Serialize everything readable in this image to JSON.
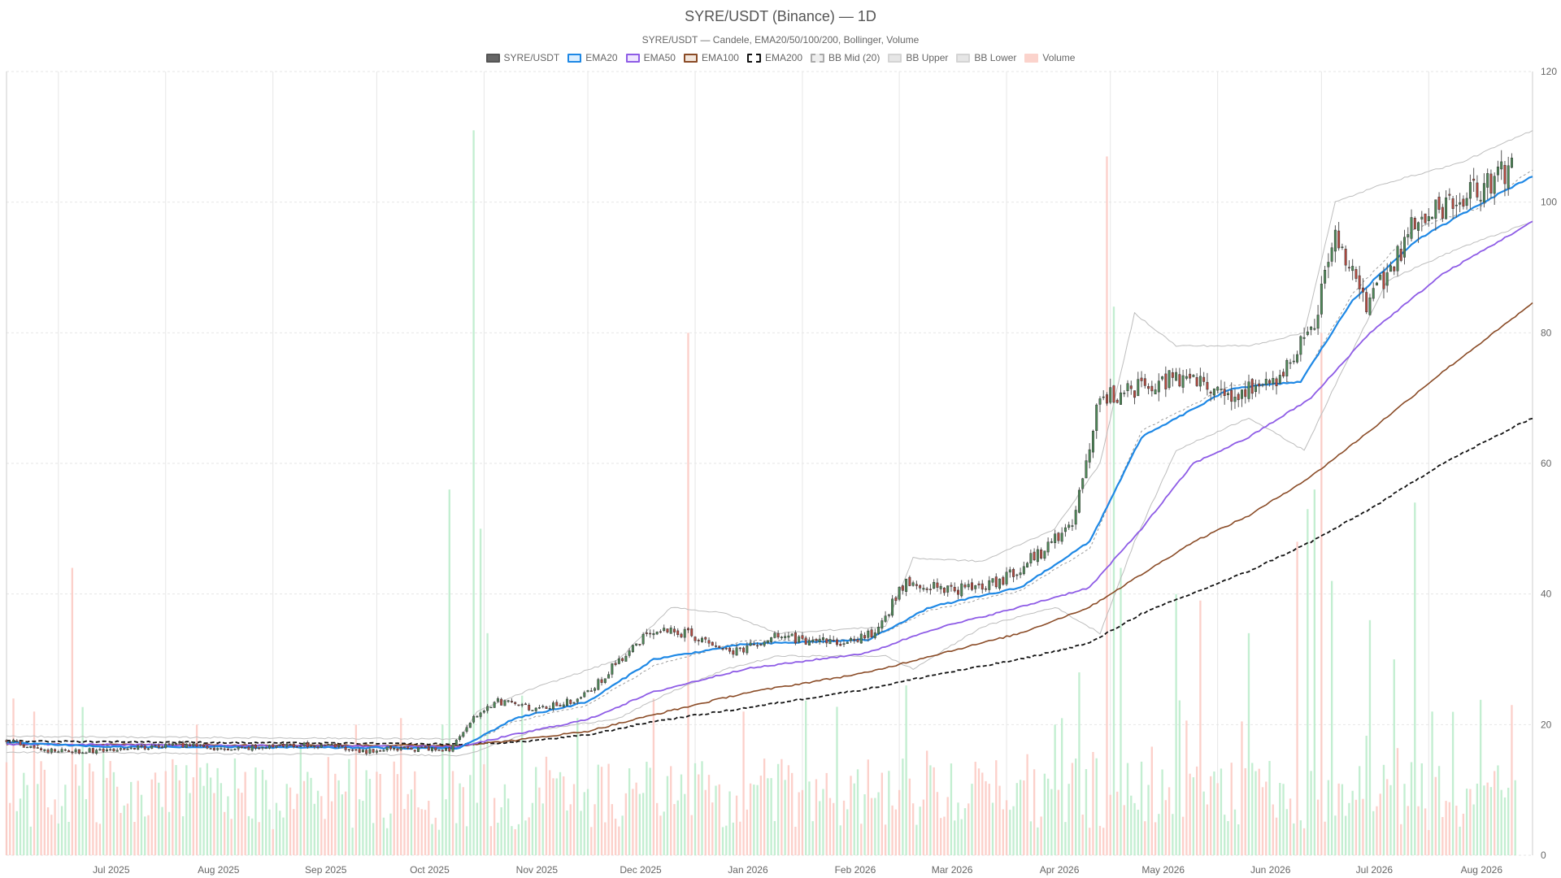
{
  "chart_data": {
    "type": "candlestick",
    "title": "SYRE/USDT (Binance) — 1D",
    "subtitle": "SYRE/USDT — Candele, EMA20/50/100/200, Bollinger, Volume",
    "legend": [
      {
        "name": "SYRE/USDT",
        "fill": "#666666",
        "border": "#555555",
        "style": "solid"
      },
      {
        "name": "EMA20",
        "fill": "#dbeeff",
        "border": "#1e88e5",
        "style": "solid"
      },
      {
        "name": "EMA50",
        "fill": "#efe6ff",
        "border": "#8e5ce6",
        "style": "solid"
      },
      {
        "name": "EMA100",
        "fill": "#f3e6dc",
        "border": "#8a4b26",
        "style": "solid"
      },
      {
        "name": "EMA200",
        "fill": "#ffffff",
        "border": "#111111",
        "style": "dashed"
      },
      {
        "name": "BB Mid (20)",
        "fill": "#eeeeee",
        "border": "#aaaaaa",
        "style": "dashed"
      },
      {
        "name": "BB Upper",
        "fill": "#e6e6e6",
        "border": "#d4d4d4",
        "style": "solid"
      },
      {
        "name": "BB Lower",
        "fill": "#e6e6e6",
        "border": "#d4d4d4",
        "style": "solid"
      },
      {
        "name": "Volume",
        "fill": "#fbd3cc",
        "border": "#fbd3cc",
        "style": "solid"
      }
    ],
    "colors": {
      "up": "#4e8a58",
      "down": "#b44a40",
      "wick": "#555555",
      "ema20": "#1e88e5",
      "ema50": "#8e5ce6",
      "ema100": "#8a4b26",
      "ema200": "#111111",
      "bb_mid": "#9a9a9a",
      "bb_band": "#bdbdbd",
      "vol_up": "#b8ebc9",
      "vol_down": "#fbc8c1",
      "grid": "#e6e6e6"
    },
    "x_axis": {
      "type": "time",
      "start": "2025-06-16",
      "end": "2026-08-31",
      "tick_labels": [
        {
          "date": "2025-07-01",
          "label": "Jul 2025"
        },
        {
          "date": "2025-08-01",
          "label": "Aug 2025"
        },
        {
          "date": "2025-09-01",
          "label": "Sep 2025"
        },
        {
          "date": "2025-10-01",
          "label": "Oct 2025"
        },
        {
          "date": "2025-11-01",
          "label": "Nov 2025"
        },
        {
          "date": "2025-12-01",
          "label": "Dec 2025"
        },
        {
          "date": "2026-01-01",
          "label": "Jan 2026"
        },
        {
          "date": "2026-02-01",
          "label": "Feb 2026"
        },
        {
          "date": "2026-03-01",
          "label": "Mar 2026"
        },
        {
          "date": "2026-04-01",
          "label": "Apr 2026"
        },
        {
          "date": "2026-05-01",
          "label": "May 2026"
        },
        {
          "date": "2026-06-01",
          "label": "Jun 2026"
        },
        {
          "date": "2026-07-01",
          "label": "Jul 2026"
        },
        {
          "date": "2026-08-01",
          "label": "Aug 2026"
        }
      ]
    },
    "y_axis": {
      "position": "right",
      "range": [
        0,
        120
      ],
      "ticks": [
        {
          "value": 0,
          "label": "0"
        },
        {
          "value": 20,
          "label": "20"
        },
        {
          "value": 40,
          "label": "40"
        },
        {
          "value": 60,
          "label": "60"
        },
        {
          "value": 80,
          "label": "80"
        },
        {
          "value": 100,
          "label": "100"
        },
        {
          "value": 120,
          "label": "120"
        }
      ],
      "grid": true
    },
    "price_path": [
      [
        "2025-06-16",
        17.6
      ],
      [
        "2025-06-25",
        16.2
      ],
      [
        "2025-07-05",
        15.8
      ],
      [
        "2025-07-20",
        16.4
      ],
      [
        "2025-08-05",
        16.9
      ],
      [
        "2025-08-20",
        16.2
      ],
      [
        "2025-09-05",
        16.9
      ],
      [
        "2025-09-20",
        16.7
      ],
      [
        "2025-09-28",
        15.8
      ],
      [
        "2025-10-05",
        16.3
      ],
      [
        "2025-10-22",
        16.2
      ],
      [
        "2025-10-28",
        20.5
      ],
      [
        "2025-11-05",
        23.5
      ],
      [
        "2025-11-15",
        22.5
      ],
      [
        "2025-11-28",
        23.8
      ],
      [
        "2025-12-05",
        27.0
      ],
      [
        "2025-12-12",
        31.0
      ],
      [
        "2025-12-20",
        34.5
      ],
      [
        "2025-12-30",
        33.8
      ],
      [
        "2026-01-12",
        31.0
      ],
      [
        "2026-01-25",
        33.5
      ],
      [
        "2026-02-10",
        32.5
      ],
      [
        "2026-02-22",
        34.0
      ],
      [
        "2026-03-03",
        42.0
      ],
      [
        "2026-03-15",
        40.5
      ],
      [
        "2026-03-30",
        42.0
      ],
      [
        "2026-04-10",
        46.0
      ],
      [
        "2026-04-20",
        50.5
      ],
      [
        "2026-04-28",
        70.0
      ],
      [
        "2026-05-10",
        72.0
      ],
      [
        "2026-05-22",
        73.5
      ],
      [
        "2026-06-05",
        71.0
      ],
      [
        "2026-06-18",
        72.0
      ],
      [
        "2026-06-28",
        80.5
      ],
      [
        "2026-07-05",
        94.0
      ],
      [
        "2026-07-15",
        84.0
      ],
      [
        "2026-07-28",
        97.0
      ],
      [
        "2026-08-10",
        100.0
      ],
      [
        "2026-08-20",
        103.0
      ],
      [
        "2026-08-31",
        108.0
      ]
    ],
    "ema": {
      "ema20": [
        [
          "2025-06-16",
          17.3
        ],
        [
          "2025-07-15",
          16.6
        ],
        [
          "2025-10-25",
          16.4
        ],
        [
          "2025-11-10",
          21.0
        ],
        [
          "2025-12-01",
          23.5
        ],
        [
          "2025-12-20",
          30.0
        ],
        [
          "2026-01-15",
          32.3
        ],
        [
          "2026-02-20",
          33.0
        ],
        [
          "2026-03-10",
          38.0
        ],
        [
          "2026-04-05",
          41.0
        ],
        [
          "2026-04-25",
          48.0
        ],
        [
          "2026-05-10",
          64.0
        ],
        [
          "2026-06-05",
          71.5
        ],
        [
          "2026-06-25",
          72.5
        ],
        [
          "2026-07-10",
          85.0
        ],
        [
          "2026-07-28",
          94.0
        ],
        [
          "2026-08-15",
          99.5
        ],
        [
          "2026-08-31",
          104.0
        ]
      ],
      "ema50": [
        [
          "2025-06-16",
          17.0
        ],
        [
          "2025-10-25",
          16.6
        ],
        [
          "2025-11-10",
          18.5
        ],
        [
          "2025-12-01",
          20.8
        ],
        [
          "2025-12-20",
          25.0
        ],
        [
          "2026-01-15",
          28.5
        ],
        [
          "2026-02-20",
          31.0
        ],
        [
          "2026-03-10",
          34.5
        ],
        [
          "2026-04-05",
          38.0
        ],
        [
          "2026-04-25",
          41.0
        ],
        [
          "2026-05-10",
          50.0
        ],
        [
          "2026-05-25",
          60.0
        ],
        [
          "2026-06-10",
          64.0
        ],
        [
          "2026-06-28",
          70.0
        ],
        [
          "2026-07-15",
          80.0
        ],
        [
          "2026-08-05",
          89.0
        ],
        [
          "2026-08-31",
          97.0
        ]
      ],
      "ema100": [
        [
          "2025-06-16",
          17.0
        ],
        [
          "2025-10-25",
          16.8
        ],
        [
          "2025-11-10",
          17.6
        ],
        [
          "2025-12-01",
          19.0
        ],
        [
          "2025-12-20",
          21.5
        ],
        [
          "2026-01-15",
          24.8
        ],
        [
          "2026-02-20",
          28.0
        ],
        [
          "2026-03-10",
          30.5
        ],
        [
          "2026-04-05",
          34.0
        ],
        [
          "2026-04-25",
          38.0
        ],
        [
          "2026-05-10",
          43.0
        ],
        [
          "2026-05-25",
          48.0
        ],
        [
          "2026-06-10",
          52.0
        ],
        [
          "2026-06-28",
          58.0
        ],
        [
          "2026-07-15",
          65.0
        ],
        [
          "2026-08-05",
          74.0
        ],
        [
          "2026-08-31",
          84.5
        ]
      ],
      "ema200": [
        [
          "2025-06-16",
          17.5
        ],
        [
          "2025-10-25",
          17.0
        ],
        [
          "2025-11-10",
          17.3
        ],
        [
          "2025-12-01",
          18.4
        ],
        [
          "2025-12-20",
          20.5
        ],
        [
          "2026-01-15",
          22.5
        ],
        [
          "2026-02-20",
          25.5
        ],
        [
          "2026-03-10",
          27.5
        ],
        [
          "2026-04-05",
          30.0
        ],
        [
          "2026-04-25",
          32.5
        ],
        [
          "2026-05-10",
          37.0
        ],
        [
          "2026-06-10",
          43.5
        ],
        [
          "2026-06-28",
          48.0
        ],
        [
          "2026-07-15",
          53.0
        ],
        [
          "2026-08-05",
          60.0
        ],
        [
          "2026-08-31",
          67.0
        ]
      ]
    },
    "bollinger": {
      "upper": [
        [
          "2025-06-16",
          18.2
        ],
        [
          "2025-10-25",
          17.8
        ],
        [
          "2025-10-30",
          22.0
        ],
        [
          "2025-11-15",
          25.5
        ],
        [
          "2025-12-10",
          30.0
        ],
        [
          "2025-12-25",
          38.0
        ],
        [
          "2026-01-10",
          37.0
        ],
        [
          "2026-01-25",
          34.0
        ],
        [
          "2026-02-25",
          35.0
        ],
        [
          "2026-03-05",
          45.5
        ],
        [
          "2026-03-25",
          45.0
        ],
        [
          "2026-04-15",
          50.0
        ],
        [
          "2026-04-28",
          60.0
        ],
        [
          "2026-05-08",
          83.0
        ],
        [
          "2026-05-20",
          78.0
        ],
        [
          "2026-06-10",
          78.0
        ],
        [
          "2026-06-26",
          80.0
        ],
        [
          "2026-07-05",
          100.0
        ],
        [
          "2026-07-20",
          103.0
        ],
        [
          "2026-08-10",
          106.0
        ],
        [
          "2026-08-31",
          111.0
        ]
      ],
      "mid": [
        [
          "2025-06-16",
          17.0
        ],
        [
          "2025-10-25",
          16.5
        ],
        [
          "2025-11-10",
          20.5
        ],
        [
          "2025-12-01",
          23.0
        ],
        [
          "2025-12-20",
          29.0
        ],
        [
          "2026-01-15",
          32.8
        ],
        [
          "2026-02-20",
          33.0
        ],
        [
          "2026-03-10",
          37.5
        ],
        [
          "2026-04-05",
          40.5
        ],
        [
          "2026-04-25",
          47.0
        ],
        [
          "2026-05-10",
          65.0
        ],
        [
          "2026-06-05",
          72.0
        ],
        [
          "2026-06-25",
          72.5
        ],
        [
          "2026-07-10",
          86.0
        ],
        [
          "2026-07-28",
          96.0
        ],
        [
          "2026-08-15",
          99.0
        ],
        [
          "2026-08-31",
          105.0
        ]
      ],
      "lower": [
        [
          "2025-06-16",
          15.8
        ],
        [
          "2025-10-25",
          15.3
        ],
        [
          "2025-10-30",
          16.0
        ],
        [
          "2025-11-15",
          19.0
        ],
        [
          "2025-12-10",
          21.0
        ],
        [
          "2025-12-25",
          25.0
        ],
        [
          "2026-01-10",
          28.5
        ],
        [
          "2026-01-25",
          30.5
        ],
        [
          "2026-02-25",
          30.5
        ],
        [
          "2026-03-05",
          28.5
        ],
        [
          "2026-03-25",
          35.0
        ],
        [
          "2026-04-15",
          38.0
        ],
        [
          "2026-04-28",
          34.0
        ],
        [
          "2026-05-08",
          48.0
        ],
        [
          "2026-05-20",
          62.0
        ],
        [
          "2026-06-10",
          67.0
        ],
        [
          "2026-06-26",
          62.0
        ],
        [
          "2026-07-05",
          72.0
        ],
        [
          "2026-07-20",
          88.0
        ],
        [
          "2026-08-10",
          93.0
        ],
        [
          "2026-08-31",
          97.0
        ]
      ]
    },
    "volume": {
      "base_level": 11,
      "spikes": [
        [
          "2025-06-18",
          24,
          "down"
        ],
        [
          "2025-06-24",
          22,
          "down"
        ],
        [
          "2025-07-05",
          44,
          "down"
        ],
        [
          "2025-08-10",
          20,
          "down"
        ],
        [
          "2025-09-25",
          20,
          "down"
        ],
        [
          "2025-10-08",
          21,
          "down"
        ],
        [
          "2025-10-20",
          20,
          "up"
        ],
        [
          "2025-10-22",
          56,
          "up"
        ],
        [
          "2025-10-29",
          111,
          "up"
        ],
        [
          "2025-10-31",
          50,
          "up"
        ],
        [
          "2025-11-02",
          34,
          "up"
        ],
        [
          "2025-11-28",
          21,
          "up"
        ],
        [
          "2025-12-20",
          24,
          "down"
        ],
        [
          "2025-12-30",
          80,
          "down"
        ],
        [
          "2026-01-15",
          22,
          "down"
        ],
        [
          "2026-03-03",
          26,
          "up"
        ],
        [
          "2026-04-15",
          20,
          "up"
        ],
        [
          "2026-04-22",
          28,
          "up"
        ],
        [
          "2026-04-30",
          107,
          "down"
        ],
        [
          "2026-05-02",
          84,
          "up"
        ],
        [
          "2026-05-04",
          44,
          "up"
        ],
        [
          "2026-05-20",
          40,
          "up"
        ],
        [
          "2026-05-27",
          39,
          "down"
        ],
        [
          "2026-06-10",
          34,
          "up"
        ],
        [
          "2026-06-24",
          48,
          "down"
        ],
        [
          "2026-06-27",
          53,
          "up"
        ],
        [
          "2026-06-29",
          56,
          "up"
        ],
        [
          "2026-07-01",
          80,
          "down"
        ],
        [
          "2026-07-04",
          42,
          "up"
        ],
        [
          "2026-07-15",
          36,
          "up"
        ],
        [
          "2026-07-22",
          30,
          "up"
        ],
        [
          "2026-07-28",
          54,
          "up"
        ],
        [
          "2026-08-02",
          22,
          "up"
        ],
        [
          "2026-08-25",
          23,
          "down"
        ]
      ]
    }
  }
}
